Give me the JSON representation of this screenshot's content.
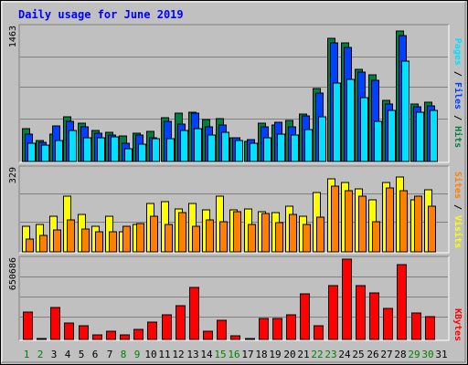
{
  "title": "Daily usage for June 2019",
  "colors": {
    "background": "#c0c0c0",
    "title": "#0000ff",
    "hits": "#008040",
    "files": "#0040ff",
    "pages": "#00e0ff",
    "visits": "#ffff00",
    "sites": "#ff8000",
    "kbytes": "#ff0000",
    "weekend_day": "#008000",
    "weekday": "#000000"
  },
  "chart_data": [
    {
      "type": "bar",
      "panel": "hits-files-pages",
      "ymax_label": "1463",
      "ylim": [
        0,
        1463
      ],
      "series_labels": [
        "Pages",
        "Files",
        "Hits"
      ],
      "categories": [
        "1",
        "2",
        "3",
        "4",
        "5",
        "6",
        "7",
        "8",
        "9",
        "10",
        "11",
        "12",
        "13",
        "14",
        "15",
        "16",
        "17",
        "18",
        "19",
        "20",
        "21",
        "22",
        "23",
        "24",
        "25",
        "26",
        "27",
        "28",
        "29",
        "30",
        "31"
      ],
      "series": [
        {
          "name": "Hits",
          "values": [
            360,
            230,
            300,
            490,
            420,
            340,
            320,
            280,
            310,
            330,
            480,
            530,
            540,
            460,
            470,
            260,
            220,
            420,
            400,
            450,
            520,
            810,
            1360,
            1310,
            1020,
            960,
            680,
            1440,
            640,
            660,
            0
          ]
        },
        {
          "name": "Files",
          "values": [
            300,
            210,
            390,
            440,
            380,
            310,
            290,
            200,
            290,
            260,
            440,
            410,
            530,
            380,
            400,
            260,
            240,
            380,
            430,
            380,
            500,
            760,
            1310,
            1260,
            990,
            900,
            640,
            1390,
            610,
            620,
            0
          ]
        },
        {
          "name": "Pages",
          "values": [
            200,
            180,
            230,
            340,
            260,
            260,
            270,
            140,
            190,
            250,
            250,
            340,
            360,
            290,
            320,
            230,
            200,
            260,
            300,
            290,
            350,
            490,
            870,
            910,
            710,
            440,
            570,
            1110,
            540,
            570,
            0
          ]
        }
      ]
    },
    {
      "type": "bar",
      "panel": "visits-sites",
      "ymax_label": "329",
      "ylim": [
        0,
        329
      ],
      "series_labels": [
        "Sites",
        "Visits"
      ],
      "categories": [
        "1",
        "2",
        "3",
        "4",
        "5",
        "6",
        "7",
        "8",
        "9",
        "10",
        "11",
        "12",
        "13",
        "14",
        "15",
        "16",
        "17",
        "18",
        "19",
        "20",
        "21",
        "22",
        "23",
        "24",
        "25",
        "26",
        "27",
        "28",
        "29",
        "30",
        "31"
      ],
      "series": [
        {
          "name": "Visits",
          "values": [
            100,
            110,
            140,
            220,
            150,
            100,
            140,
            80,
            110,
            190,
            200,
            170,
            190,
            165,
            220,
            165,
            170,
            160,
            155,
            180,
            140,
            235,
            290,
            275,
            250,
            205,
            275,
            298,
            205,
            245,
            0
          ]
        },
        {
          "name": "Sites",
          "values": [
            50,
            65,
            87,
            125,
            90,
            80,
            80,
            100,
            112,
            140,
            110,
            155,
            102,
            125,
            120,
            160,
            110,
            152,
            115,
            150,
            110,
            137,
            262,
            244,
            219,
            118,
            254,
            244,
            220,
            180,
            0
          ]
        }
      ]
    },
    {
      "type": "bar",
      "panel": "kbytes",
      "ymax_label": "650686",
      "ylim": [
        0,
        650686
      ],
      "series_labels": [
        "KBytes"
      ],
      "categories": [
        "1",
        "2",
        "3",
        "4",
        "5",
        "6",
        "7",
        "8",
        "9",
        "10",
        "11",
        "12",
        "13",
        "14",
        "15",
        "16",
        "17",
        "18",
        "19",
        "20",
        "21",
        "22",
        "23",
        "24",
        "25",
        "26",
        "27",
        "28",
        "29",
        "30",
        "31"
      ],
      "series": [
        {
          "name": "KBytes",
          "values": [
            223000,
            7000,
            262000,
            130000,
            111000,
            37000,
            66000,
            37000,
            82000,
            140000,
            201000,
            275000,
            419000,
            63000,
            154000,
            30000,
            7000,
            171000,
            171000,
            197000,
            371000,
            111000,
            439000,
            650000,
            439000,
            378000,
            253000,
            609000,
            212000,
            182000,
            0
          ]
        }
      ]
    }
  ],
  "days": [
    "1",
    "2",
    "3",
    "4",
    "5",
    "6",
    "7",
    "8",
    "9",
    "10",
    "11",
    "12",
    "13",
    "14",
    "15",
    "16",
    "17",
    "18",
    "19",
    "20",
    "21",
    "22",
    "23",
    "24",
    "25",
    "26",
    "27",
    "28",
    "29",
    "30",
    "31"
  ],
  "weekend_days": [
    "1",
    "2",
    "8",
    "9",
    "15",
    "16",
    "22",
    "23",
    "29",
    "30"
  ]
}
